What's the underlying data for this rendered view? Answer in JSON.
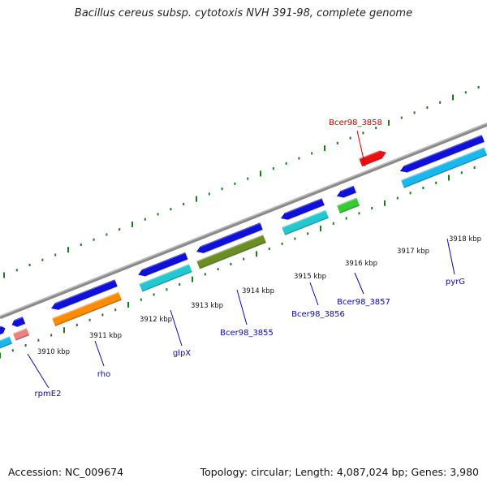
{
  "title": "Bacillus cereus subsp. cytotoxis NVH 391-98, complete genome",
  "footer": {
    "accession": "Accession: NC_009674",
    "stats": "Topology: circular; Length: 4,087,024 bp; Genes: 3,980"
  },
  "colors": {
    "backbone": "#8a8a8a",
    "ticks": "#1e7a1e",
    "gene_forward": "#1010dd",
    "label_default": "#0a0aa0",
    "label_highlight": "#cc0000"
  },
  "ticks": [
    {
      "label": "3910 kbp"
    },
    {
      "label": "3911 kbp"
    },
    {
      "label": "3912 kbp"
    },
    {
      "label": "3913 kbp"
    },
    {
      "label": "3914 kbp"
    },
    {
      "label": "3915 kbp"
    },
    {
      "label": "3916 kbp"
    },
    {
      "label": "3917 kbp"
    },
    {
      "label": "3918 kbp"
    }
  ],
  "gene_labels": [
    {
      "name": "rpmE2"
    },
    {
      "name": "rho"
    },
    {
      "name": "glpX"
    },
    {
      "name": "Bcer98_3855"
    },
    {
      "name": "Bcer98_3856"
    },
    {
      "name": "Bcer98_3857"
    },
    {
      "name": "Bcer98_3858"
    },
    {
      "name": "pyrG"
    }
  ]
}
